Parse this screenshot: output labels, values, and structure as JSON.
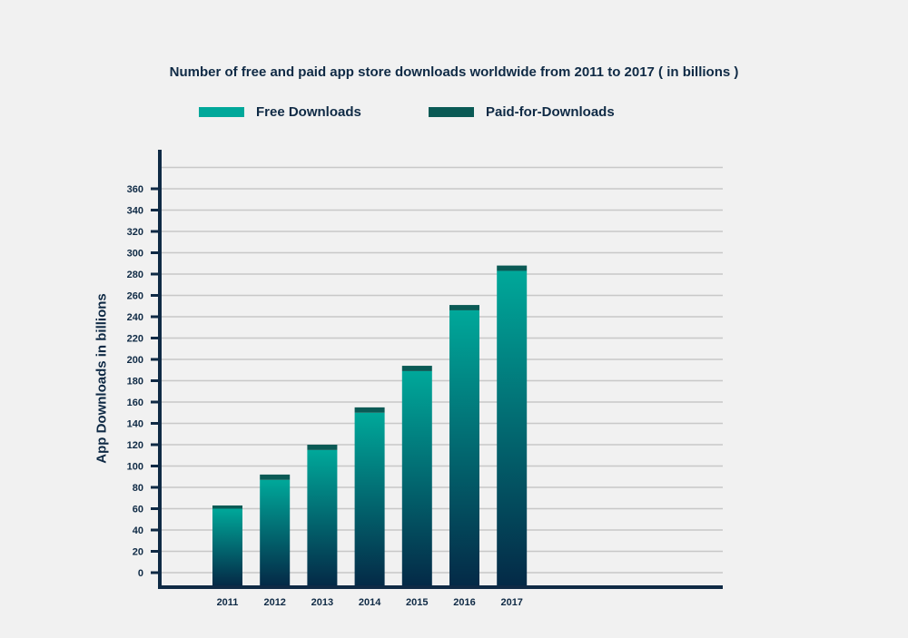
{
  "colors": {
    "free_top": "#00a89a",
    "free_bottom": "#042a47",
    "paid": "#0a5a55",
    "axis": "#0f2a45",
    "grid": "#c8c8c8",
    "background": "#f1f1f1"
  },
  "chart_data": {
    "type": "bar",
    "stacked": true,
    "title": "Number of free and paid app store downloads worldwide from 2011 to 2017 ( in billions )",
    "ylabel": "App Downloads in billions",
    "xlabel": "",
    "categories": [
      "2011",
      "2012",
      "2013",
      "2014",
      "2015",
      "2016",
      "2017"
    ],
    "series": [
      {
        "name": "Free Downloads",
        "values": [
          60,
          87,
          115,
          150,
          189,
          246,
          283
        ]
      },
      {
        "name": "Paid-for-Downloads",
        "values": [
          3,
          5,
          5,
          5,
          5,
          5,
          5
        ]
      }
    ],
    "yticks": [
      "0",
      "20",
      "40",
      "60",
      "80",
      "100",
      "120",
      "140",
      "160",
      "180",
      "200",
      "220",
      "240",
      "260",
      "280",
      "300",
      "320",
      "340",
      "360"
    ],
    "ylim": [
      0,
      380
    ],
    "grid": true,
    "legend_position": "top"
  }
}
